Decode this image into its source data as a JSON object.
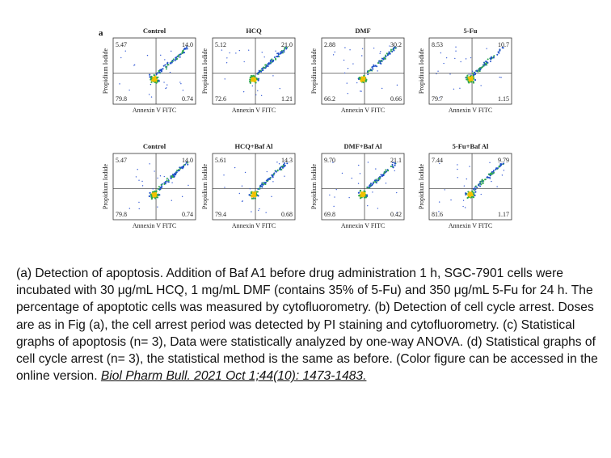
{
  "figure": {
    "panel_letter": "a",
    "x_axis_label": "Annexin V FITC",
    "y_axis_label": "Propidium Iodide",
    "panels": [
      {
        "title": "Control",
        "ul": "5.47",
        "ur": "14.0",
        "ll": "79.8",
        "lr": "0.74"
      },
      {
        "title": "HCQ",
        "ul": "5.12",
        "ur": "21.0",
        "ll": "72.6",
        "lr": "1.21"
      },
      {
        "title": "DMF",
        "ul": "2.88",
        "ur": "30.2",
        "ll": "66.2",
        "lr": "0.66"
      },
      {
        "title": "5-Fu",
        "ul": "8.53",
        "ur": "10.7",
        "ll": "79.7",
        "lr": "1.15"
      },
      {
        "title": "Control",
        "ul": "5.47",
        "ur": "14.0",
        "ll": "79.8",
        "lr": "0.74"
      },
      {
        "title": "HCQ+Baf Al",
        "ul": "5.61",
        "ur": "14.3",
        "ll": "79.4",
        "lr": "0.68"
      },
      {
        "title": "DMF+Baf Al",
        "ul": "9.70",
        "ur": "21.1",
        "ll": "69.8",
        "lr": "0.42"
      },
      {
        "title": "5-Fu+Baf Al",
        "ul": "7.44",
        "ur": "9.79",
        "ll": "81.6",
        "lr": "1.17"
      }
    ]
  },
  "caption": {
    "text": "(a) Detection of apoptosis. Addition of Baf A1 before drug administration 1 h, SGC-7901 cells were incubated with 30 μg/mL HCQ, 1 mg/mL DMF (contains 35% of 5-Fu) and 350 μg/mL 5-Fu for 24 h. The percentage of apoptotic cells was measured by cytofluorometry. (b) Detection of cell cycle arrest. Doses are as in Fig (a), the cell arrest period was detected by PI staining and cytofluorometry. (c) Statistical graphs of apoptosis (n= 3), Data were statistically analyzed by one-way ANOVA. (d) Statistical graphs of cell cycle arrest (n= 3), the statistical method is the same as before. (Color figure can be accessed in the online version. ",
    "citation": "Biol Pharm Bull. 2021 Oct 1;44(10): 1473-1483."
  }
}
